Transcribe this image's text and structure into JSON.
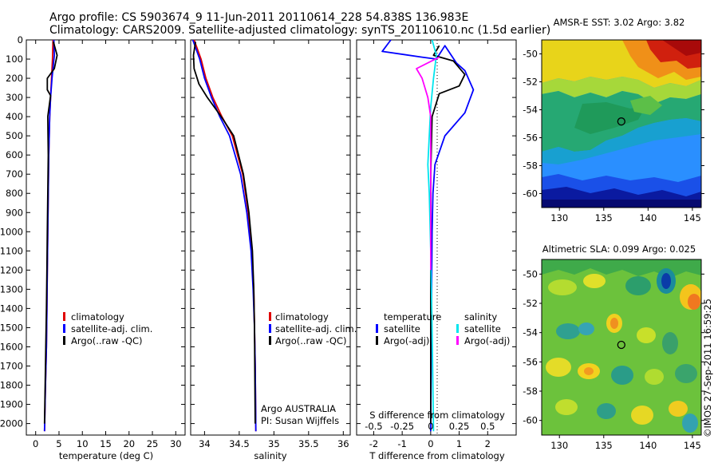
{
  "header": {
    "line1": "Argo profile: CS 5903674_9 11-Jun-2011 20110614_228 54.838S 136.983E",
    "line2": "Climatology: CARS2009. Satellite-adjusted climatology: synTS_20110610.nc (1.5d earlier)"
  },
  "credit": "©IMOS 27-Sep-2011 16:59:25",
  "colors": {
    "climatology": "#e00000",
    "satellite": "#0000ff",
    "argo": "#000000",
    "sal_satellite": "#00e5ee",
    "sal_argo": "#ff00ff"
  },
  "chart_data": [
    {
      "id": "temperature",
      "type": "line",
      "xlabel": "temperature (deg C)",
      "ylabel": "",
      "xlim": [
        -2,
        32
      ],
      "ylim": [
        2060,
        0
      ],
      "xticks": [
        0,
        5,
        10,
        15,
        20,
        25,
        30
      ],
      "xtick_labels": [
        "0",
        "5",
        "10",
        "15",
        "20",
        "25",
        "30"
      ],
      "yticks": [
        0,
        100,
        200,
        300,
        400,
        500,
        600,
        700,
        800,
        900,
        1000,
        1100,
        1200,
        1300,
        1400,
        1500,
        1600,
        1700,
        1800,
        1900,
        2000
      ],
      "ytick_labels": [
        "0",
        "100",
        "200",
        "300",
        "400",
        "500",
        "600",
        "700",
        "800",
        "900",
        "1000",
        "1100",
        "1200",
        "1300",
        "1400",
        "1500",
        "1600",
        "1700",
        "1800",
        "1900",
        "2000"
      ],
      "legend": [
        "climatology",
        "satellite-adj. clim.",
        "Argo(..raw -QC)"
      ],
      "series": [
        {
          "name": "climatology",
          "color": "#e00000",
          "x": [
            3.7,
            3.6,
            3.4,
            3.2,
            3.0,
            2.9,
            2.8,
            2.7,
            2.6,
            2.5,
            2.4,
            2.3,
            2.1,
            1.9
          ],
          "y": [
            0,
            100,
            200,
            300,
            400,
            500,
            600,
            800,
            1000,
            1200,
            1400,
            1600,
            1800,
            2040
          ]
        },
        {
          "name": "satellite-adj. clim.",
          "color": "#0000ff",
          "x": [
            3.9,
            4.0,
            3.5,
            3.2,
            3.0,
            2.9,
            2.8,
            2.7,
            2.6,
            2.5,
            2.4,
            2.3,
            2.1,
            1.9
          ],
          "y": [
            0,
            80,
            200,
            300,
            400,
            500,
            600,
            800,
            1000,
            1200,
            1400,
            1600,
            1800,
            2040
          ]
        },
        {
          "name": "Argo(..raw -QC)",
          "color": "#000000",
          "x": [
            3.8,
            4.6,
            4.0,
            2.5,
            2.5,
            3.2,
            2.6,
            2.7,
            2.6,
            2.5,
            2.4,
            2.3,
            2.1,
            1.9
          ],
          "y": [
            10,
            80,
            150,
            200,
            260,
            290,
            400,
            600,
            800,
            1000,
            1200,
            1400,
            1700,
            2000
          ]
        }
      ]
    },
    {
      "id": "salinity",
      "type": "line",
      "xlabel": "salinity",
      "ylabel": "",
      "xlim": [
        33.8,
        36.1
      ],
      "ylim": [
        2060,
        0
      ],
      "xticks": [
        34,
        34.5,
        35,
        35.5,
        36
      ],
      "xtick_labels": [
        "34",
        "34.5",
        "35",
        "35.5",
        "36"
      ],
      "legend": [
        "climatology",
        "satellite-adj. clim.",
        "Argo(..raw -QC)"
      ],
      "annotation": [
        "Argo AUSTRALIA",
        "PI: Susan Wijffels"
      ],
      "series": [
        {
          "name": "climatology",
          "color": "#e00000",
          "x": [
            33.85,
            33.9,
            33.95,
            34.02,
            34.12,
            34.25,
            34.4,
            34.55,
            34.63,
            34.68,
            34.71,
            34.72,
            34.73,
            34.74
          ],
          "y": [
            0,
            50,
            100,
            200,
            300,
            400,
            500,
            700,
            900,
            1100,
            1300,
            1500,
            1700,
            2040
          ]
        },
        {
          "name": "satellite-adj. clim.",
          "color": "#0000ff",
          "x": [
            33.83,
            33.88,
            33.93,
            34.0,
            34.1,
            34.22,
            34.36,
            34.52,
            34.61,
            34.67,
            34.7,
            34.72,
            34.73,
            34.74
          ],
          "y": [
            0,
            50,
            100,
            200,
            300,
            400,
            500,
            700,
            900,
            1100,
            1300,
            1500,
            1700,
            2040
          ]
        },
        {
          "name": "Argo(..raw -QC)",
          "color": "#000000",
          "x": [
            33.87,
            33.84,
            33.85,
            33.92,
            34.04,
            34.24,
            34.42,
            34.56,
            34.64,
            34.69,
            34.71,
            34.72,
            34.73
          ],
          "y": [
            10,
            80,
            150,
            230,
            300,
            400,
            500,
            700,
            900,
            1100,
            1300,
            1500,
            2000
          ]
        }
      ]
    },
    {
      "id": "difference",
      "type": "line",
      "xlabel": "T difference from climatology",
      "xlabel_top": "S difference from climatology",
      "xlim": [
        -2.6,
        3.0
      ],
      "ylim": [
        2060,
        0
      ],
      "xticks": [
        -2,
        -1,
        0,
        1,
        2
      ],
      "xtick_labels": [
        "-2",
        "-1",
        "0",
        "1",
        "2"
      ],
      "s_ticks": [
        -0.5,
        -0.25,
        0,
        0.25,
        0.5
      ],
      "s_tick_labels": [
        "-0.5",
        "-0.25",
        "0",
        "0.25",
        "0.5"
      ],
      "legend_left": {
        "title": "temperature",
        "items": [
          "satellite",
          "Argo(-adj)"
        ]
      },
      "legend_right": {
        "title": "salinity",
        "items": [
          "satellite",
          "Argo(-adj)"
        ]
      },
      "series": [
        {
          "name": "temperature satellite",
          "color": "#0000ff",
          "x": [
            -1.4,
            -1.7,
            -0.3,
            0.2,
            0.5,
            0.9,
            1.2,
            1.5,
            1.2,
            0.5,
            0.15,
            0.08,
            0.05,
            0.02,
            0.0
          ],
          "y": [
            0,
            60,
            90,
            100,
            30,
            120,
            160,
            260,
            380,
            500,
            650,
            800,
            1000,
            1500,
            2040
          ]
        },
        {
          "name": "temperature Argo(-adj)",
          "color": "#000000",
          "x": [
            0.3,
            0.1,
            0.8,
            1.2,
            1.0,
            0.3,
            0.05,
            0.0,
            0.0,
            0.0
          ],
          "y": [
            30,
            80,
            110,
            180,
            240,
            280,
            400,
            700,
            1200,
            2000
          ]
        },
        {
          "name": "salinity satellite",
          "color": "#00e5ee",
          "x": [
            0.05,
            0.2,
            0.1,
            0.0,
            -0.05,
            -0.1,
            -0.05,
            0.0,
            0.05,
            0.1
          ],
          "y": [
            0,
            80,
            200,
            350,
            500,
            650,
            800,
            1100,
            1500,
            2040
          ]
        },
        {
          "name": "salinity Argo(-adj)",
          "color": "#ff00ff",
          "x": [
            0.3,
            -0.5,
            -0.3,
            -0.2,
            -0.1,
            0.0,
            0.0,
            0.0
          ],
          "y": [
            90,
            150,
            200,
            250,
            300,
            400,
            700,
            1200
          ]
        }
      ]
    },
    {
      "id": "sst_map",
      "type": "heatmap",
      "title": "AMSR-E SST: 3.02 Argo: 3.82",
      "xlim": [
        128,
        146
      ],
      "ylim": [
        -61,
        -49
      ],
      "xticks": [
        130,
        135,
        140,
        145
      ],
      "xtick_labels": [
        "130",
        "135",
        "140",
        "145"
      ],
      "yticks": [
        -50,
        -52,
        -54,
        -56,
        -58,
        -60
      ],
      "ytick_labels": [
        "-50",
        "-52",
        "-54",
        "-56",
        "-58",
        "-60"
      ],
      "marker": {
        "lon": 136.983,
        "lat": -54.838
      }
    },
    {
      "id": "sla_map",
      "type": "heatmap",
      "title": "Altimetric SLA: 0.099 Argo: 0.025",
      "xlim": [
        128,
        146
      ],
      "ylim": [
        -61,
        -49
      ],
      "xticks": [
        130,
        135,
        140,
        145
      ],
      "xtick_labels": [
        "130",
        "135",
        "140",
        "145"
      ],
      "yticks": [
        -50,
        -52,
        -54,
        -56,
        -58,
        -60
      ],
      "ytick_labels": [
        "-50",
        "-52",
        "-54",
        "-56",
        "-58",
        "-60"
      ],
      "marker": {
        "lon": 136.983,
        "lat": -54.838
      }
    }
  ]
}
